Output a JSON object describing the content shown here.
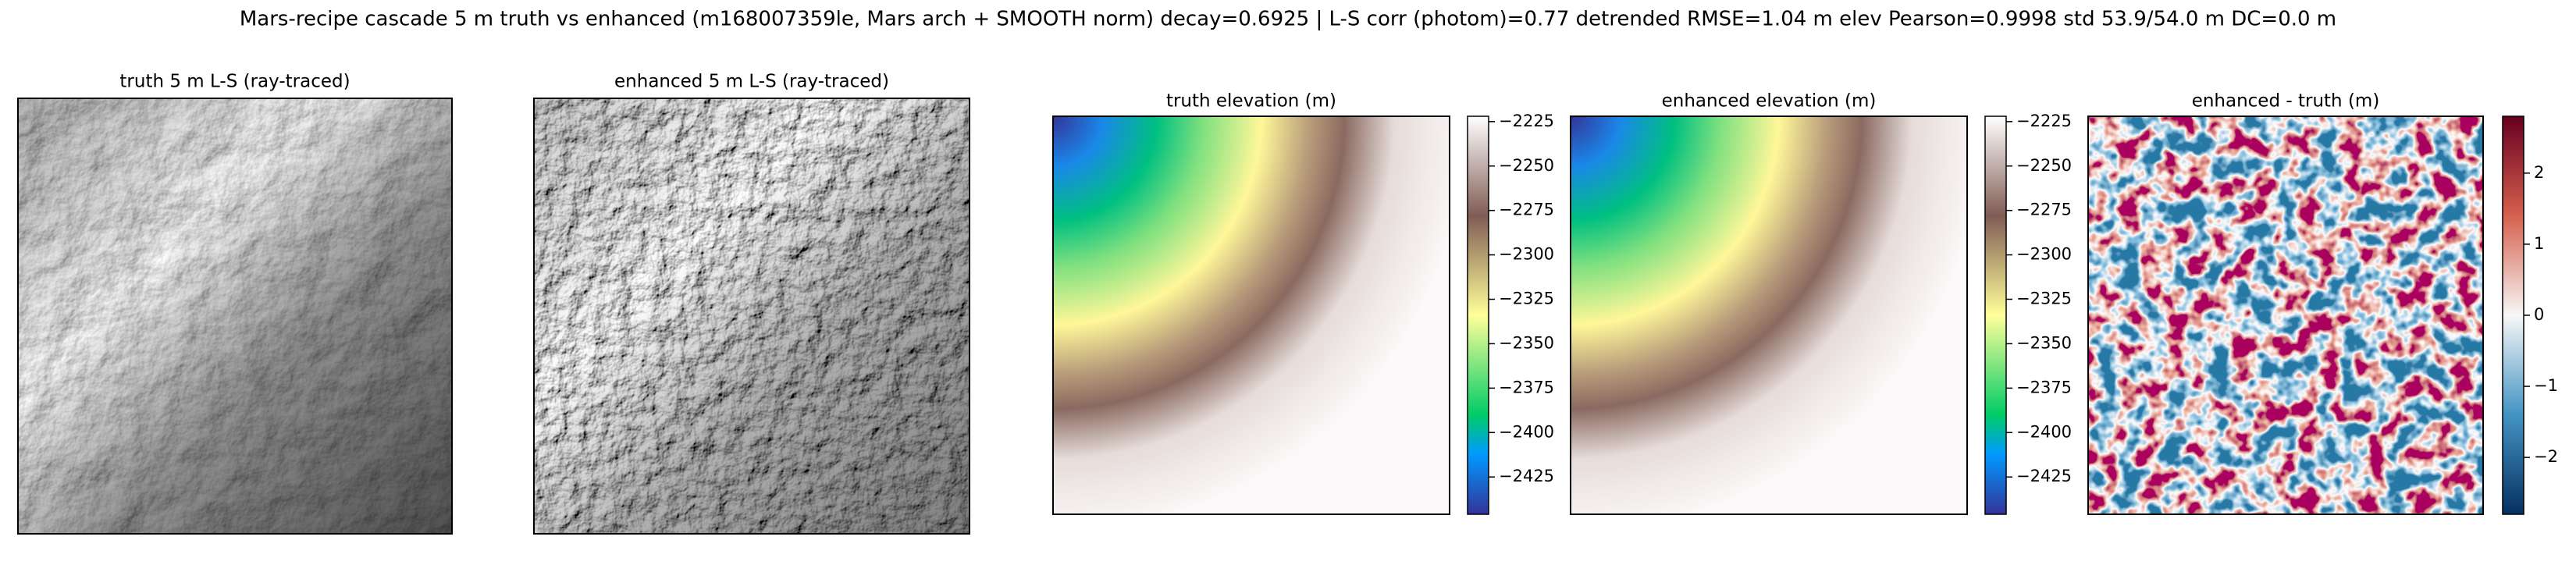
{
  "title": "Mars-recipe cascade 5 m truth vs enhanced (m168007359le, Mars arch + SMOOTH norm) decay=0.6925  |  L-S corr (photom)=0.77  detrended RMSE=1.04 m  elev Pearson=0.9998  std 53.9/54.0 m  DC=0.0 m",
  "chart_data": [
    {
      "type": "hillshade",
      "title": "truth 5 m L-S (ray-traced)"
    },
    {
      "type": "hillshade",
      "title": "enhanced 5 m L-S (ray-traced)"
    },
    {
      "type": "heatmap",
      "title": "truth elevation (m)",
      "colormap": "terrain",
      "clim": [
        -2446,
        -2222
      ],
      "cticks": [
        {
          "value": -2225,
          "label": "−2225"
        },
        {
          "value": -2250,
          "label": "−2250"
        },
        {
          "value": -2275,
          "label": "−2275"
        },
        {
          "value": -2300,
          "label": "−2300"
        },
        {
          "value": -2325,
          "label": "−2325"
        },
        {
          "value": -2350,
          "label": "−2350"
        },
        {
          "value": -2375,
          "label": "−2375"
        },
        {
          "value": -2400,
          "label": "−2400"
        },
        {
          "value": -2425,
          "label": "−2425"
        }
      ]
    },
    {
      "type": "heatmap",
      "title": "enhanced elevation (m)",
      "colormap": "terrain",
      "clim": [
        -2446,
        -2222
      ],
      "cticks": [
        {
          "value": -2225,
          "label": "−2225"
        },
        {
          "value": -2250,
          "label": "−2250"
        },
        {
          "value": -2275,
          "label": "−2275"
        },
        {
          "value": -2300,
          "label": "−2300"
        },
        {
          "value": -2325,
          "label": "−2325"
        },
        {
          "value": -2350,
          "label": "−2350"
        },
        {
          "value": -2375,
          "label": "−2375"
        },
        {
          "value": -2400,
          "label": "−2400"
        },
        {
          "value": -2425,
          "label": "−2425"
        }
      ]
    },
    {
      "type": "diffmap",
      "title": "enhanced - truth (m)",
      "colormap": "RdBu_r",
      "clim": [
        -2.8,
        2.8
      ],
      "cticks": [
        2,
        1,
        0,
        {
          "value": -1,
          "label": "−1"
        },
        {
          "value": -2,
          "label": "−2"
        }
      ]
    }
  ]
}
